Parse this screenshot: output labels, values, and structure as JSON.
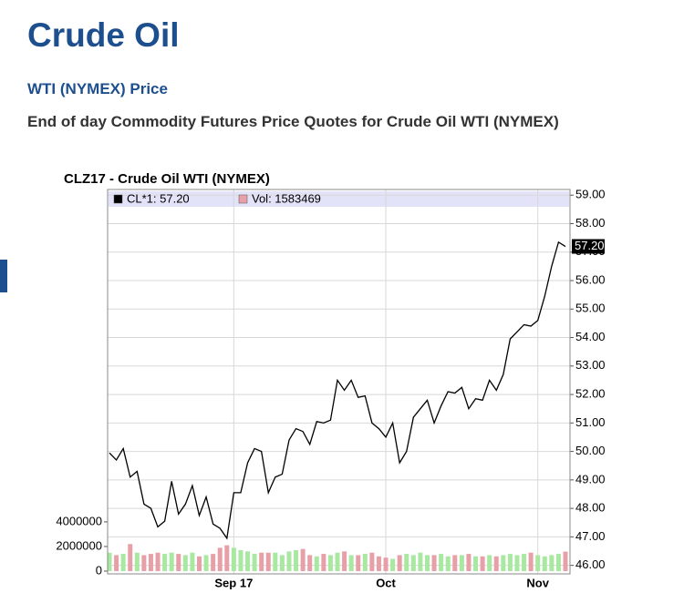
{
  "header": {
    "title": "Crude Oil",
    "subtitle": "WTI (NYMEX) Price",
    "description": "End of day Commodity Futures Price Quotes for Crude Oil WTI (NYMEX)"
  },
  "chart_data": {
    "type": "line",
    "title": "CLZ17 - Crude Oil WTI (NYMEX)",
    "categories": [
      null,
      null,
      null,
      null,
      null,
      null,
      null,
      null,
      null,
      null,
      null,
      null,
      null,
      null,
      null,
      null,
      null,
      null,
      "Sep 17",
      null,
      null,
      null,
      null,
      null,
      null,
      null,
      null,
      null,
      null,
      null,
      null,
      null,
      null,
      null,
      null,
      null,
      null,
      null,
      null,
      null,
      "Oct",
      null,
      null,
      null,
      null,
      null,
      null,
      null,
      null,
      null,
      null,
      null,
      null,
      null,
      null,
      null,
      null,
      null,
      null,
      null,
      null,
      null,
      "Nov",
      null,
      null,
      null,
      null
    ],
    "series": [
      {
        "name": "CL*1: 57.20",
        "color": "#000000",
        "values": [
          49.95,
          49.7,
          50.1,
          49.1,
          49.3,
          48.15,
          48.0,
          47.35,
          47.55,
          48.95,
          47.8,
          48.15,
          48.8,
          47.75,
          48.4,
          47.45,
          47.3,
          46.95,
          48.55,
          48.55,
          49.6,
          50.1,
          50.0,
          48.55,
          49.1,
          49.2,
          50.4,
          50.8,
          50.7,
          50.25,
          51.05,
          51.0,
          51.1,
          52.5,
          52.15,
          52.5,
          51.9,
          51.95,
          51.0,
          50.8,
          50.5,
          51.0,
          49.6,
          50.0,
          51.2,
          51.5,
          51.8,
          51.0,
          51.6,
          52.1,
          52.05,
          52.25,
          51.5,
          51.85,
          51.8,
          52.5,
          52.15,
          52.7,
          53.95,
          54.2,
          54.45,
          54.4,
          54.6,
          55.45,
          56.5,
          57.35,
          57.2
        ]
      },
      {
        "name": "Vol: 1583469",
        "type": "bar",
        "axis": "y2",
        "color": "#e8a0a8",
        "up_color": "#a8e8a0",
        "values": [
          1500000,
          1300000,
          1400000,
          2200000,
          1500000,
          1300000,
          1400000,
          1500000,
          1400000,
          1500000,
          1400000,
          1300000,
          1500000,
          1200000,
          1300000,
          1400000,
          1900000,
          2100000,
          1900000,
          1700000,
          1600000,
          1400000,
          1500000,
          1500000,
          1500000,
          1300000,
          1600000,
          1700000,
          1800000,
          1300000,
          1200000,
          1400000,
          1300000,
          1500000,
          1600000,
          1300000,
          1300000,
          1400000,
          1500000,
          1200000,
          1100000,
          1000000,
          1300000,
          1400000,
          1300000,
          1500000,
          1300000,
          1300000,
          1400000,
          1200000,
          1300000,
          1300000,
          1400000,
          1200000,
          1200000,
          1300000,
          1200000,
          1300000,
          1400000,
          1300000,
          1400000,
          1500000,
          1300000,
          1200000,
          1300000,
          1400000,
          1583469
        ]
      }
    ],
    "ylim": [
      45.7,
      59.2
    ],
    "yticks": [
      {
        "value": 46,
        "label": "46.00"
      },
      {
        "value": 47,
        "label": "47.00"
      },
      {
        "value": 48,
        "label": "48.00"
      },
      {
        "value": 49,
        "label": "49.00"
      },
      {
        "value": 50,
        "label": "50.00"
      },
      {
        "value": 51,
        "label": "51.00"
      },
      {
        "value": 52,
        "label": "52.00"
      },
      {
        "value": 53,
        "label": "53.00"
      },
      {
        "value": 54,
        "label": "54.00"
      },
      {
        "value": 55,
        "label": "55.00"
      },
      {
        "value": 56,
        "label": "56.00"
      },
      {
        "value": 57,
        "label": "57.00"
      },
      {
        "value": 58,
        "label": "58.00"
      },
      {
        "value": 59,
        "label": "59.00"
      }
    ],
    "y2lim": [
      0,
      31000000
    ],
    "y2ticks": [
      0,
      2000000,
      4000000
    ],
    "last_price_label": "57.20",
    "grid": true
  }
}
